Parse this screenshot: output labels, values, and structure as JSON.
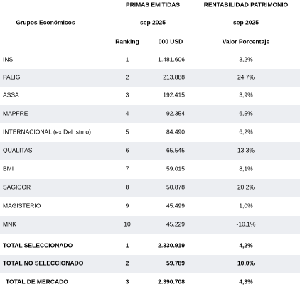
{
  "header": {
    "group1": "PRIMAS EMITIDAS",
    "group2": "RENTABILIDAD PATRIMONIO",
    "label": "Grupos Económicos",
    "period1": "sep 2025",
    "period2": "sep 2025",
    "columns": [
      "Ranking",
      "000 USD",
      "Valor Porcentaje"
    ]
  },
  "table": {
    "rows": [
      [
        "INS",
        "1",
        "1.481.606",
        "3,2%"
      ],
      [
        "PALIG",
        "2",
        "213.888",
        "24,7%"
      ],
      [
        "ASSA",
        "3",
        "192.415",
        "3,9%"
      ],
      [
        "MAPFRE",
        "4",
        "92.354",
        "6,5%"
      ],
      [
        "INTERNACIONAL (ex Del Istmo)",
        "5",
        "84.490",
        "6,2%"
      ],
      [
        "QUALITAS",
        "6",
        "65.545",
        "13,3%"
      ],
      [
        "BMI",
        "7",
        "59.015",
        "8,1%"
      ],
      [
        "SAGICOR",
        "8",
        "50.878",
        "20,2%"
      ],
      [
        "MAGISTERIO",
        "9",
        "45.499",
        "1,0%"
      ],
      [
        "MNK",
        "10",
        "45.229",
        "-10,1%"
      ],
      [
        "TOTAL SELECCIONADO",
        "1",
        "2.330.919",
        "4,2%"
      ],
      [
        "TOTAL NO SELECCIONADO",
        "2",
        "59.789",
        "10,0%"
      ],
      [
        "TOTAL DE MERCADO",
        "3",
        "2.390.708",
        "4,3%"
      ]
    ]
  }
}
